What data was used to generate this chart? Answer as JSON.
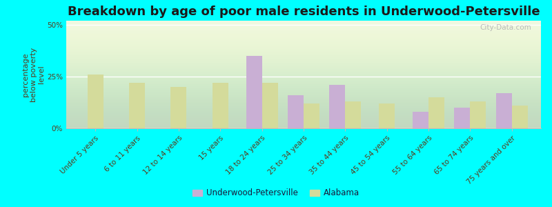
{
  "title": "Breakdown by age of poor male residents in Underwood-Petersville",
  "categories": [
    "Under 5 years",
    "6 to 11 years",
    "12 to 14 years",
    "15 years",
    "18 to 24 years",
    "25 to 34 years",
    "35 to 44 years",
    "45 to 54 years",
    "55 to 64 years",
    "65 to 74 years",
    "75 years and over"
  ],
  "underwood": [
    0,
    0,
    0,
    0,
    35,
    16,
    21,
    0,
    8,
    10,
    17
  ],
  "alabama": [
    26,
    22,
    20,
    22,
    22,
    12,
    13,
    12,
    15,
    13,
    11
  ],
  "color_underwood": "#c9afd4",
  "color_alabama": "#d4db9b",
  "background_plot": "#edf7e0",
  "background_fig": "#00ffff",
  "ylabel": "percentage\nbelow poverty\nlevel",
  "ylim": [
    0,
    52
  ],
  "yticks": [
    0,
    25,
    50
  ],
  "ytick_labels": [
    "0%",
    "25%",
    "50%"
  ],
  "bar_width": 0.38,
  "title_fontsize": 13,
  "axis_label_fontsize": 8,
  "tick_fontsize": 7.5,
  "legend_labels": [
    "Underwood-Petersville",
    "Alabama"
  ],
  "watermark": "City-Data.com"
}
